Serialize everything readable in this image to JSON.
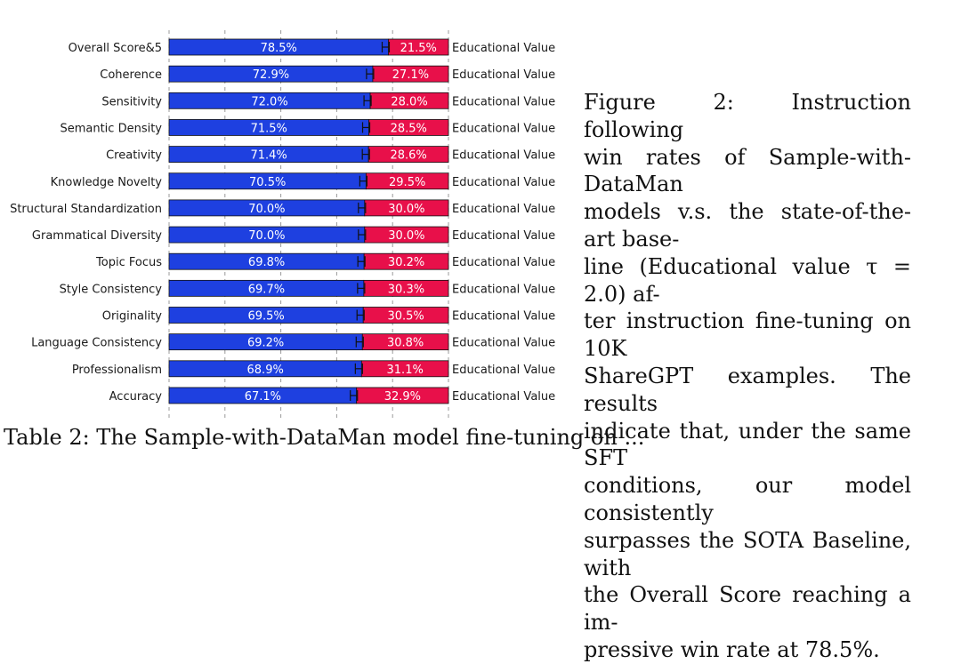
{
  "chart_data": {
    "type": "bar",
    "orientation": "horizontal",
    "stacked": true,
    "percent_scale": true,
    "categories": [
      "Overall Score&5",
      "Coherence",
      "Sensitivity",
      "Semantic Density",
      "Creativity",
      "Knowledge Novelty",
      "Structural Standardization",
      "Grammatical Diversity",
      "Topic Focus",
      "Style Consistency",
      "Originality",
      "Language Consistency",
      "Professionalism",
      "Accuracy"
    ],
    "series": [
      {
        "name": "Sample-with-DataMan",
        "color": "#1e40e0",
        "values": [
          78.5,
          72.9,
          72.0,
          71.5,
          71.4,
          70.5,
          70.0,
          70.0,
          69.8,
          69.7,
          69.5,
          69.2,
          68.9,
          67.1
        ]
      },
      {
        "name": "Educational Value",
        "color": "#e8104a",
        "values": [
          21.5,
          27.1,
          28.0,
          28.5,
          28.6,
          29.5,
          30.0,
          30.0,
          30.2,
          30.3,
          30.5,
          30.8,
          31.1,
          32.9
        ]
      }
    ],
    "value_labels": {
      "left": [
        "78.5%",
        "72.9%",
        "72.0%",
        "71.5%",
        "71.4%",
        "70.5%",
        "70.0%",
        "70.0%",
        "69.8%",
        "69.7%",
        "69.5%",
        "69.2%",
        "68.9%",
        "67.1%"
      ],
      "right": [
        "21.5%",
        "27.1%",
        "28.0%",
        "28.5%",
        "28.6%",
        "29.5%",
        "30.0%",
        "30.0%",
        "30.2%",
        "30.3%",
        "30.5%",
        "30.8%",
        "31.1%",
        "32.9%"
      ]
    },
    "right_label": "Educational Value",
    "xlim": [
      0,
      100
    ],
    "grid": true,
    "error_bars": true
  },
  "caption": {
    "lines": [
      "Figure 2: Instruction following",
      "win rates of Sample-with-DataMan",
      "models v.s. the state-of-the-art base-",
      "line (Educational value τ = 2.0) af-",
      "ter instruction fine-tuning on 10K",
      "ShareGPT examples. The results",
      "indicate that, under the same SFT",
      "conditions, our model consistently",
      "surpasses the SOTA Baseline, with",
      "the Overall Score reaching a im-",
      "pressive win rate at 78.5%."
    ]
  },
  "cutoff_text": "Table 2: The Sample-with-DataMan model fine-tuning on ..."
}
